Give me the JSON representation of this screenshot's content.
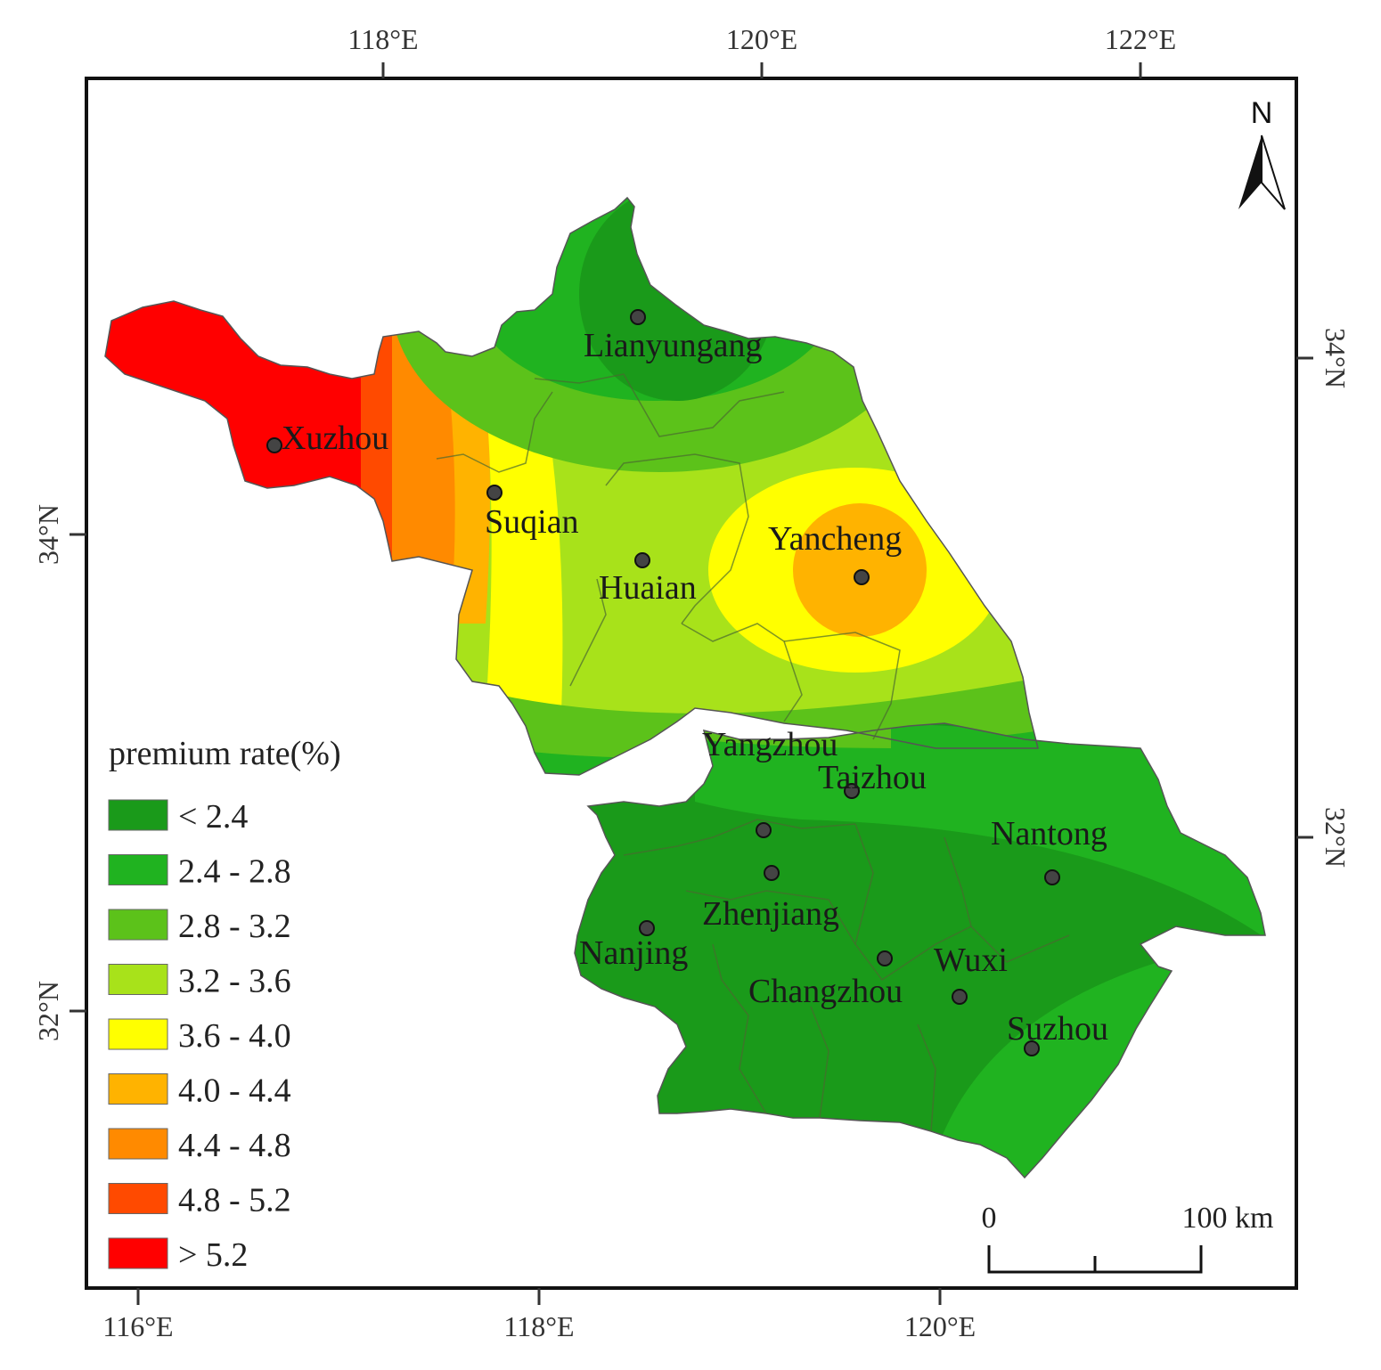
{
  "axes": {
    "top_ticks": [
      "118°E",
      "120°E",
      "122°E"
    ],
    "bottom_ticks": [
      "116°E",
      "118°E",
      "120°E"
    ],
    "left_ticks": [
      "34°N",
      "32°N"
    ],
    "right_ticks": [
      "34°N",
      "32°N"
    ]
  },
  "north_arrow": {
    "label": "N",
    "icon": "north-arrow-icon"
  },
  "legend": {
    "title": "premium rate(%)",
    "classes": [
      {
        "label": "< 2.4",
        "color": "#1a9a1a"
      },
      {
        "label": "2.4 - 2.8",
        "color": "#20b320"
      },
      {
        "label": "2.8 - 3.2",
        "color": "#5cc21a"
      },
      {
        "label": "3.2 - 3.6",
        "color": "#a8e21a"
      },
      {
        "label": "3.6 - 4.0",
        "color": "#ffff00"
      },
      {
        "label": "4.0 - 4.4",
        "color": "#ffb300"
      },
      {
        "label": "4.4 - 4.8",
        "color": "#ff8a00"
      },
      {
        "label": "4.8 - 5.2",
        "color": "#ff4a00"
      },
      {
        "label": "> 5.2",
        "color": "#ff0000"
      }
    ]
  },
  "cities": [
    {
      "name": "Lianyungang"
    },
    {
      "name": "Xuzhou"
    },
    {
      "name": "Suqian"
    },
    {
      "name": "Huaian"
    },
    {
      "name": "Yancheng"
    },
    {
      "name": "Yangzhou"
    },
    {
      "name": "Taizhou"
    },
    {
      "name": "Nantong"
    },
    {
      "name": "Zhenjiang"
    },
    {
      "name": "Nanjing"
    },
    {
      "name": "Wuxi"
    },
    {
      "name": "Changzhou"
    },
    {
      "name": "Suzhou"
    }
  ],
  "scale_bar": {
    "start": "0",
    "end": "100 km"
  }
}
